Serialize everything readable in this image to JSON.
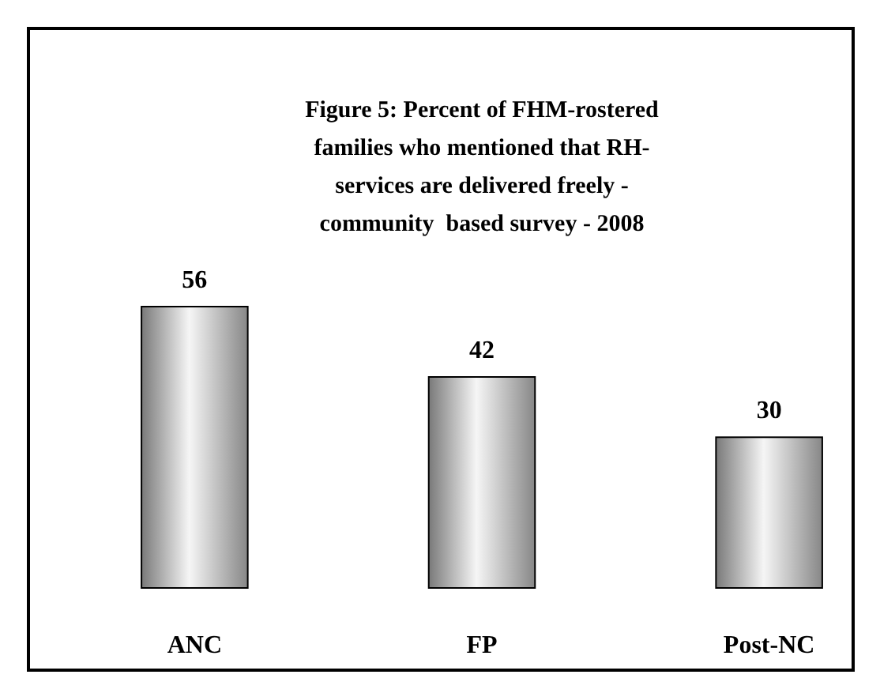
{
  "chart_data": {
    "type": "bar",
    "title": "Figure 5: Percent of FHM-rostered\nfamilies who mentioned that RH-\nservices are delivered freely -\ncommunity  based survey - 2008",
    "categories": [
      "ANC",
      "FP",
      "Post-NC"
    ],
    "values": [
      56,
      42,
      30
    ],
    "color": "#c0c0c0",
    "data_labels": true
  }
}
